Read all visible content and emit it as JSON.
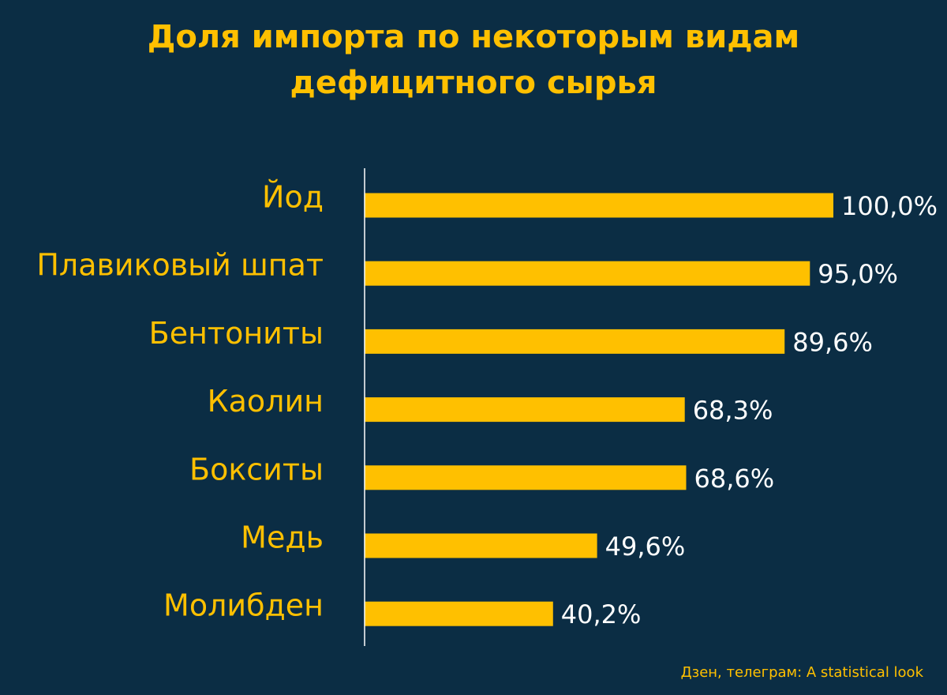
{
  "chart_data": {
    "type": "bar",
    "orientation": "horizontal",
    "title_lines": [
      "Доля импорта по некоторым видам",
      "дефицитного сырья"
    ],
    "categories": [
      "Йод",
      "Плавиковый шпат",
      "Бентониты",
      "Каолин",
      "Бокситы",
      "Медь",
      "Молибден"
    ],
    "values": [
      100.0,
      95.0,
      89.6,
      68.3,
      68.6,
      49.6,
      40.2
    ],
    "value_labels": [
      "100,0%",
      "95,0%",
      "89,6%",
      "68,3%",
      "68,6%",
      "49,6%",
      "40,2%"
    ],
    "xlim": [
      0,
      100
    ],
    "grid": false,
    "bar_color": "#ffc000",
    "label_color": "#ffc000",
    "value_label_color": "#ffffff",
    "axis_color": "#ffffff",
    "background": "#0b2d44"
  },
  "credit": "Дзен, телеграм: A statistical look"
}
